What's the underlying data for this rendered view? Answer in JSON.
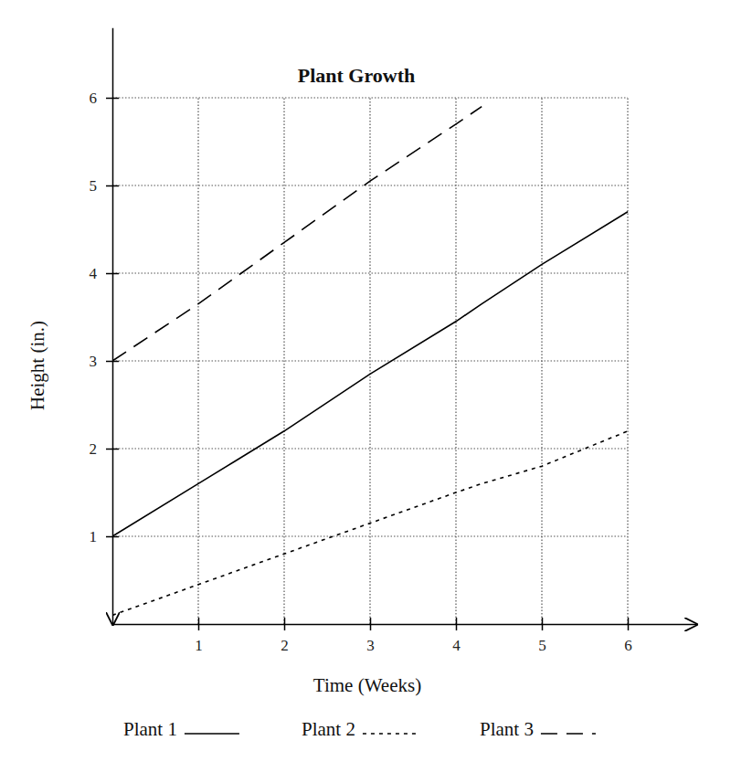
{
  "chart_data": {
    "type": "line",
    "title": "Plant Growth",
    "x_label": "Time (Weeks)",
    "y_label": "Height (in.)",
    "x": [
      0,
      1,
      2,
      3,
      4,
      4.3,
      5,
      6
    ],
    "series": [
      {
        "name": "Plant 1",
        "color": "#000000",
        "line_style": "solid",
        "values": [
          1,
          1.6,
          2.2,
          2.85,
          3.45,
          3.65,
          4.1,
          4.7
        ]
      },
      {
        "name": "Plant 2",
        "color": "#000000",
        "line_style": "dotted",
        "values": [
          0.1,
          0.45,
          0.8,
          1.15,
          1.5,
          1.6,
          1.8,
          2.2
        ]
      },
      {
        "name": "Plant 3",
        "color": "#000000",
        "line_style": "long_dash",
        "values": [
          3,
          3.65,
          4.35,
          5.05,
          5.7,
          5.9,
          null,
          null
        ]
      }
    ],
    "xlim": [
      0,
      6.8
    ],
    "ylim": [
      0,
      6.8
    ],
    "xticks": [
      1,
      2,
      3,
      4,
      5,
      6
    ],
    "yticks": [
      1,
      2,
      3,
      4,
      5,
      6
    ],
    "grid": true,
    "legend": "bottom"
  }
}
